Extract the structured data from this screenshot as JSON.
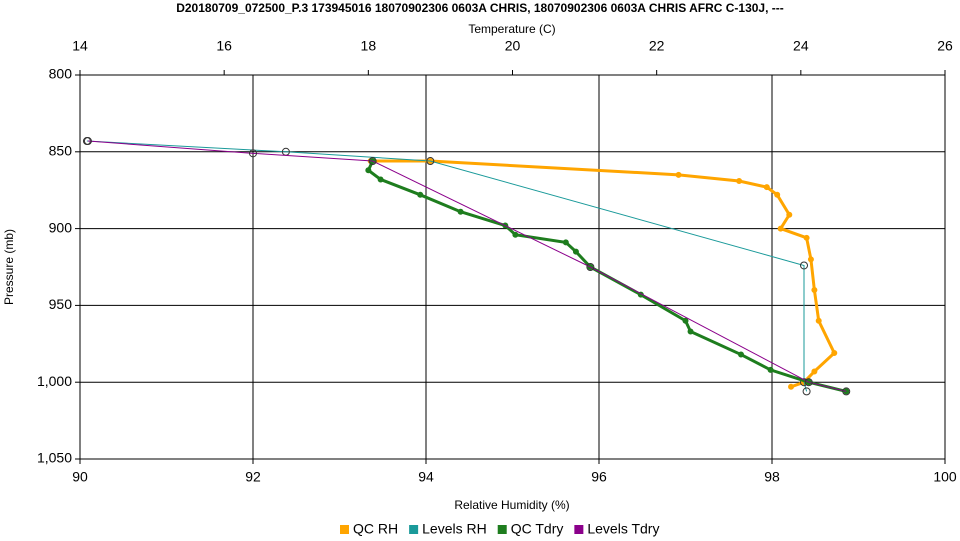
{
  "chart_data": {
    "type": "line",
    "title": "D20180709_072500_P.3 173945016 18070902306 0603A CHRIS, 18070902306 0603A CHRIS AFRC C-130J, ---",
    "xlabel": "Relative Humidity (%)",
    "x2label": "Temperature (C)",
    "ylabel": "Pressure (mb)",
    "xlim": [
      90,
      100
    ],
    "xticks": [
      90,
      92,
      94,
      96,
      98,
      100
    ],
    "x2lim": [
      14,
      26
    ],
    "x2ticks": [
      14,
      16,
      18,
      20,
      22,
      24,
      26
    ],
    "ylim": [
      800,
      1050
    ],
    "y_inverted": true,
    "yticks": [
      800,
      850,
      900,
      950,
      {
        "value": 1000,
        "label": "1,000"
      },
      {
        "value": 1050,
        "label": "1,050"
      }
    ],
    "grid": true,
    "legend": "bottom",
    "series": [
      {
        "name": "QC RH",
        "color": "#ffa500",
        "axis": "x",
        "x": [
          93.36,
          94.05,
          96.92,
          97.62,
          97.94,
          98.06,
          98.2,
          98.1,
          98.4,
          98.45,
          98.49,
          98.54,
          98.72,
          98.49,
          98.37,
          98.22
        ],
        "values": [
          856,
          856,
          865,
          869,
          873,
          878,
          891,
          900,
          906,
          920,
          940,
          960,
          981,
          993,
          1000,
          1003
        ]
      },
      {
        "name": "Levels RH",
        "color": "#1a9a9a",
        "axis": "x",
        "x": [
          90.08,
          92.38,
          94.05,
          98.37,
          98.37,
          98.4
        ],
        "values": [
          843,
          850,
          856,
          924,
          1000,
          1006
        ]
      },
      {
        "name": "QC Tdry",
        "color": "#1e7d1e",
        "axis": "x2",
        "x": [
          18.06,
          18.0,
          18.17,
          18.72,
          19.28,
          19.9,
          20.04,
          20.74,
          20.88,
          21.08,
          21.78,
          22.4,
          22.47,
          23.17,
          23.58,
          24.11,
          24.63
        ],
        "values": [
          856,
          862,
          868,
          878,
          889,
          898,
          904,
          909,
          915,
          925,
          943,
          960,
          967,
          982,
          992,
          1000,
          1006
        ]
      },
      {
        "name": "Levels Tdry",
        "color": "#8b008b",
        "axis": "x2",
        "x": [
          14.11,
          16.4,
          18.06,
          21.08,
          24.11,
          24.63
        ],
        "values": [
          843,
          851,
          856,
          925,
          1000,
          1006
        ]
      }
    ]
  }
}
